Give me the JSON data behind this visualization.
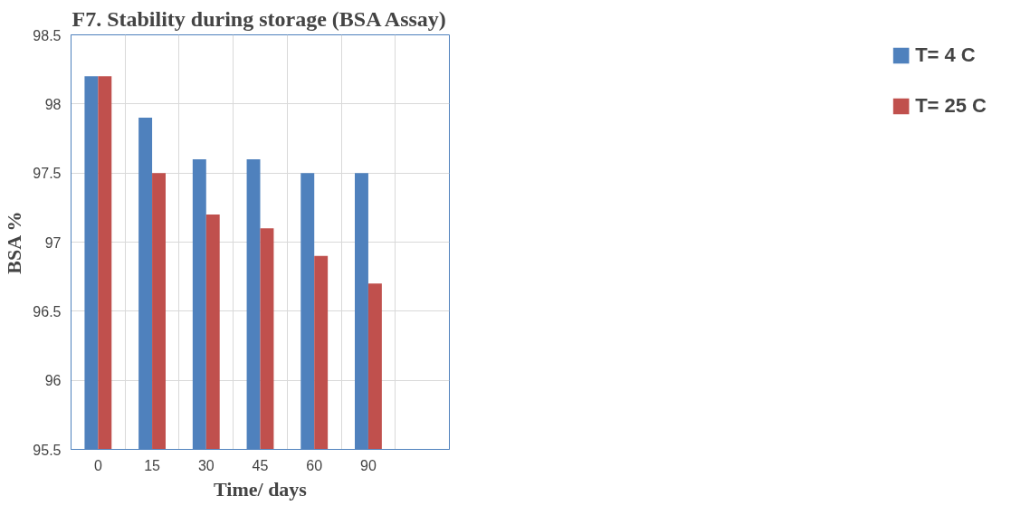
{
  "chart_data": {
    "type": "bar",
    "title": "F7. Stability during storage (BSA Assay)",
    "xlabel": "Time/ days",
    "ylabel": "BSA %",
    "categories": [
      "0",
      "15",
      "30",
      "45",
      "60",
      "90",
      null
    ],
    "series": [
      {
        "name": "T= 4 C",
        "color": "#4f81bd",
        "values": [
          98.2,
          97.9,
          97.6,
          97.6,
          97.5,
          97.5,
          null
        ]
      },
      {
        "name": "T= 25 C",
        "color": "#c0504d",
        "values": [
          98.2,
          97.5,
          97.2,
          97.1,
          96.9,
          96.7,
          null
        ]
      }
    ],
    "ylim": [
      95.5,
      98.5
    ],
    "yticks": [
      95.5,
      96,
      96.5,
      97,
      97.5,
      98,
      98.5
    ],
    "grid": true,
    "legend": "right"
  }
}
